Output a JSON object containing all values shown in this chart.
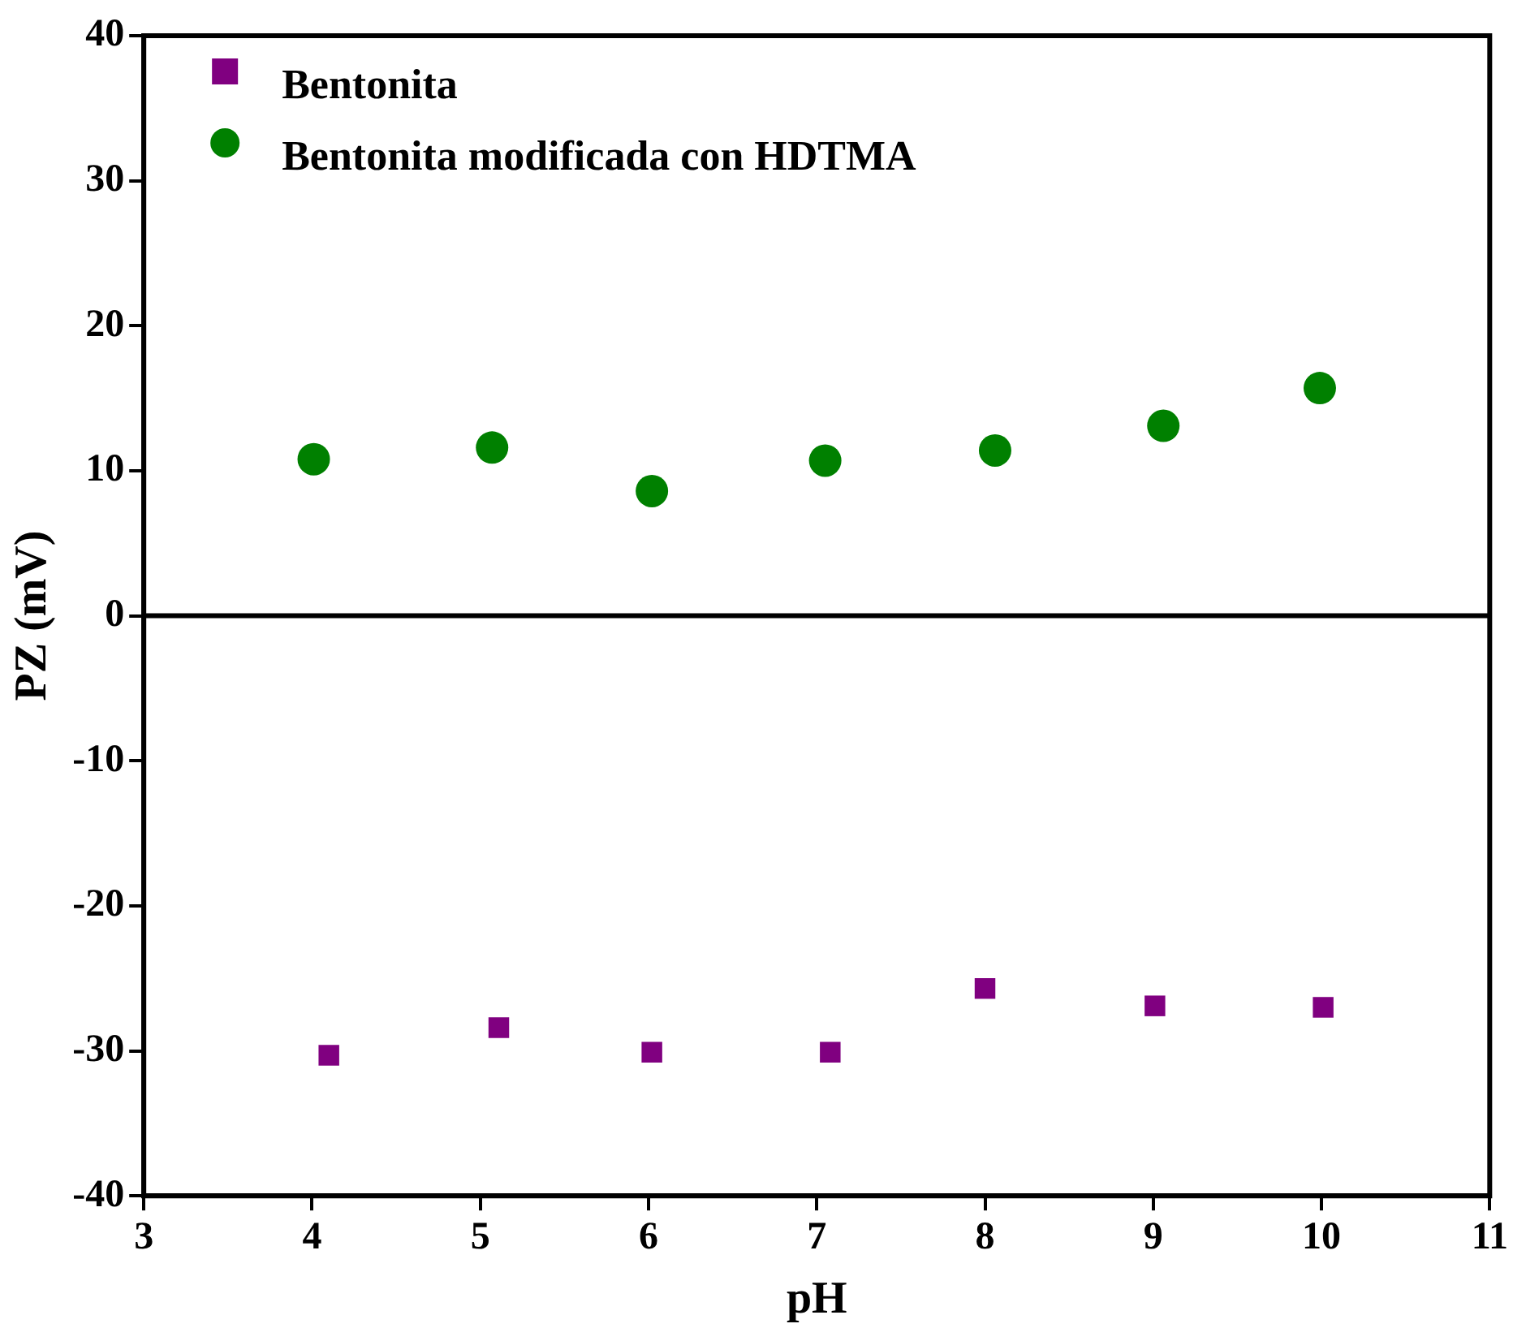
{
  "chart_data": {
    "type": "scatter",
    "xlabel": "pH",
    "ylabel": "PZ (mV)",
    "xlim": [
      3,
      11
    ],
    "xticks": [
      3,
      4,
      5,
      6,
      7,
      8,
      9,
      10,
      11
    ],
    "ylim": [
      -40,
      40
    ],
    "yticks": [
      -40,
      -30,
      -20,
      -10,
      0,
      10,
      20,
      30,
      40
    ],
    "grid": false,
    "legend": "top left",
    "ref_lines": [
      {
        "axis": "y",
        "value": 0,
        "color": "#000000"
      }
    ],
    "series": [
      {
        "name": "Bentonita",
        "color": "#800080",
        "marker": "square",
        "x": [
          4.1,
          5.11,
          6.02,
          7.08,
          8.0,
          9.01,
          10.01
        ],
        "values": [
          -30.3,
          -28.4,
          -30.1,
          -30.1,
          -25.7,
          -26.9,
          -27.0
        ]
      },
      {
        "name": "Bentonita modificada con HDTMA",
        "color": "#008000",
        "marker": "circle",
        "x": [
          4.01,
          5.07,
          6.02,
          7.05,
          8.06,
          9.06,
          9.99
        ],
        "values": [
          10.8,
          11.6,
          8.6,
          10.7,
          11.4,
          13.1,
          15.7
        ]
      }
    ]
  }
}
